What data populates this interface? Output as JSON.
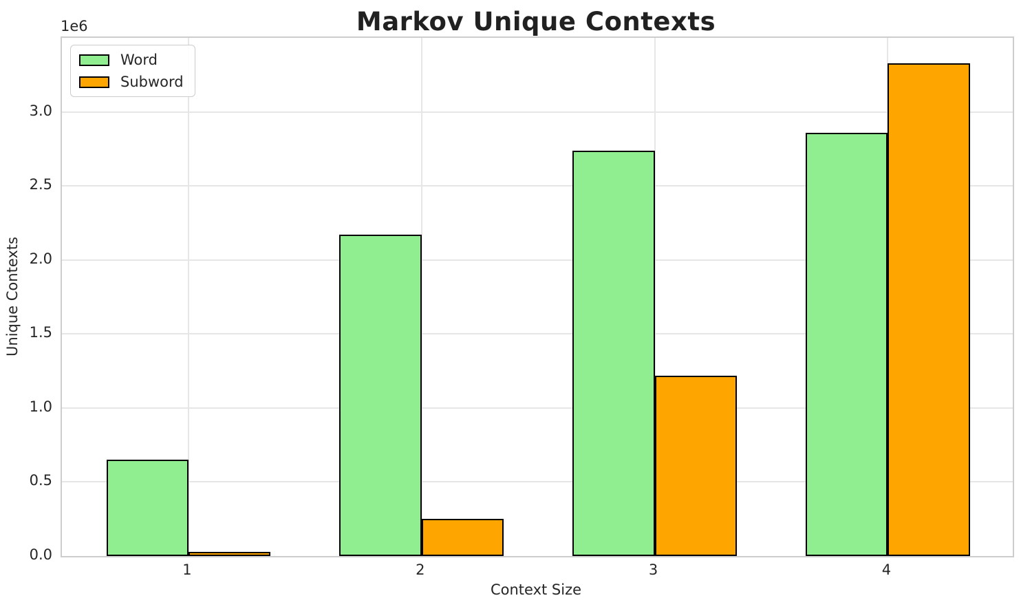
{
  "title": "Markov Unique Contexts",
  "chart_data": {
    "type": "bar",
    "title": "Markov Unique Contexts",
    "xlabel": "Context Size",
    "ylabel": "Unique Contexts",
    "offset_text": "1e6",
    "categories": [
      "1",
      "2",
      "3",
      "4"
    ],
    "series": [
      {
        "name": "Word",
        "color": "#90EE90",
        "values": [
          650000,
          2170000,
          2740000,
          2860000
        ]
      },
      {
        "name": "Subword",
        "color": "#FFA500",
        "values": [
          30000,
          250000,
          1220000,
          3330000
        ]
      }
    ],
    "bar_edge_color": "#000000",
    "ylim": [
      0,
      3500000
    ],
    "yticks": [
      0,
      500000,
      1000000,
      1500000,
      2000000,
      2500000,
      3000000
    ],
    "ytick_labels": [
      "0.0",
      "0.5",
      "1.0",
      "1.5",
      "2.0",
      "2.5",
      "3.0"
    ],
    "grid": true,
    "legend_position": "upper left",
    "colors": {
      "grid": "#e6e6e6",
      "spine": "#cccccc",
      "text": "#262626"
    }
  }
}
